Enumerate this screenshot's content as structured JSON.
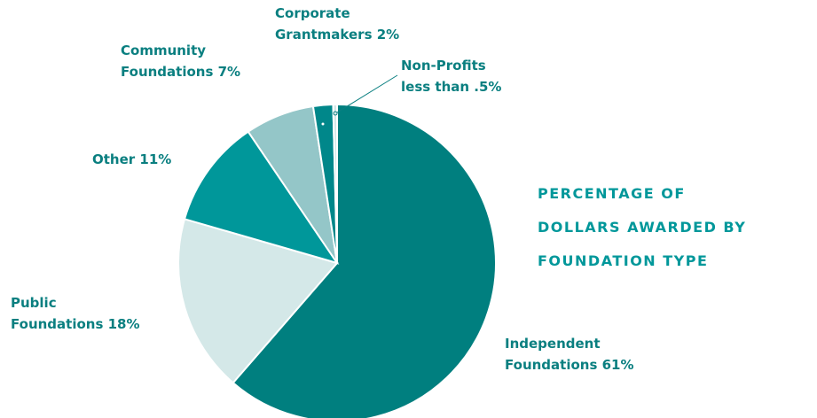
{
  "chart_data": {
    "type": "pie",
    "title": [
      "PERCENTAGE OF",
      "DOLLARS AWARDED BY",
      "FOUNDATION TYPE"
    ],
    "labels": [
      [
        "Independent",
        "Foundations 61%"
      ],
      [
        "Public",
        "Foundations 18%"
      ],
      [
        "Other 11%"
      ],
      [
        "Community",
        "Foundations 7%"
      ],
      [
        "Corporate",
        "Grantmakers 2%"
      ],
      [
        "Non-Profits",
        "less than .5%"
      ]
    ],
    "values": [
      61,
      18,
      11,
      7,
      2,
      0.4
    ],
    "colors": [
      "#007f7f",
      "#d4e8e8",
      "#00979a",
      "#94c6c8",
      "#00878a",
      "#d4e8e8"
    ]
  }
}
